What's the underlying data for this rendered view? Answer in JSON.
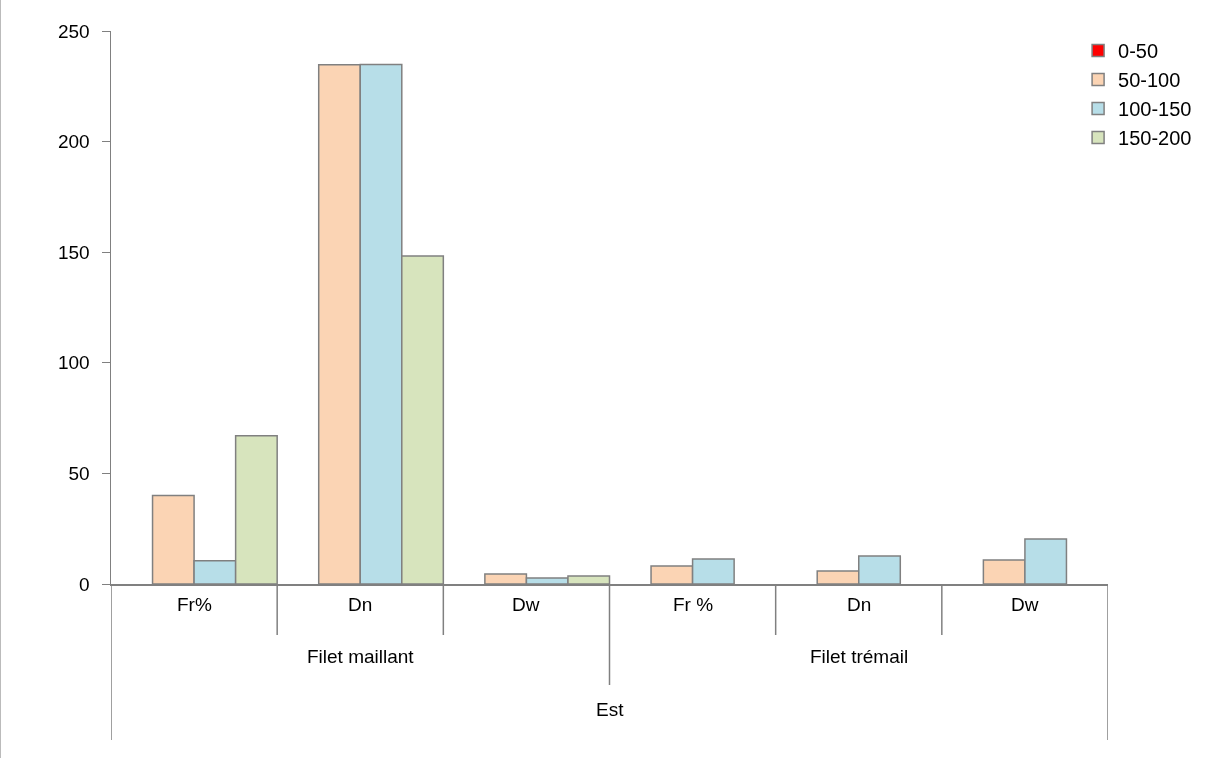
{
  "chart_data": {
    "type": "bar",
    "categories": [
      "Fr%",
      "Dn",
      "Dw",
      "Fr %",
      "Dn",
      "Dw"
    ],
    "series": [
      {
        "name": "0-50",
        "color": "#ff0000",
        "values": [
          null,
          null,
          null,
          null,
          null,
          null
        ]
      },
      {
        "name": "50-100",
        "color": "#fbd4b4",
        "values": [
          40,
          234.7,
          4.5,
          8.1,
          5.9,
          10.8
        ]
      },
      {
        "name": "100-150",
        "color": "#b7dee8",
        "values": [
          10.5,
          234.8,
          2.7,
          11.3,
          12.7,
          20.3
        ]
      },
      {
        "name": "150-200",
        "color": "#d7e4bd",
        "values": [
          67,
          148.3,
          3.6,
          null,
          null,
          null
        ]
      }
    ],
    "ylim": [
      0,
      250
    ],
    "yticks": [
      0,
      50,
      100,
      150,
      200,
      250
    ],
    "legend": "top right",
    "annotations": [
      "Filet maillant",
      "Filet trémail",
      "Est"
    ]
  }
}
